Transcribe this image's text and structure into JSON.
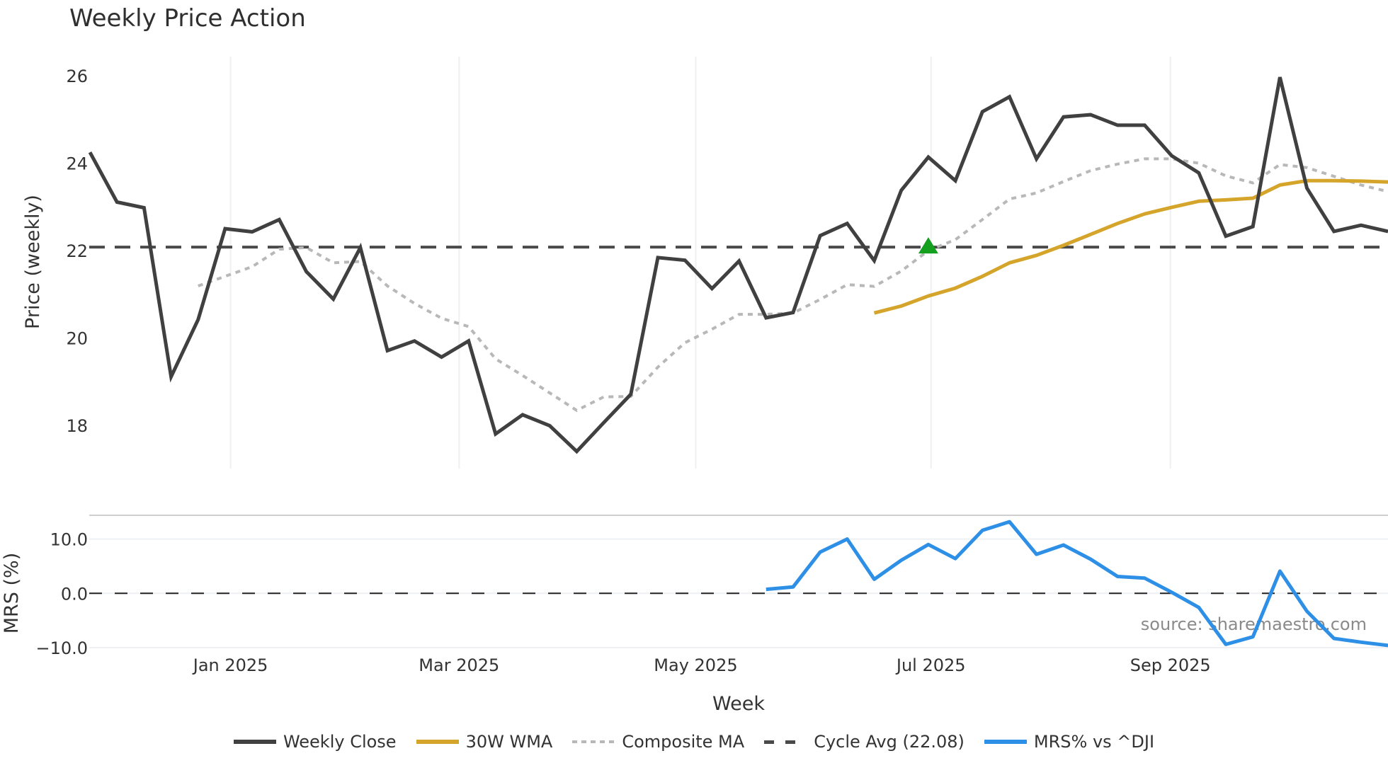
{
  "title": "Weekly Price Action",
  "source_note": "source: sharemaestro.com",
  "colors": {
    "weekly_close": "#404040",
    "wma": "#D4A52A",
    "composite": "#B8B8B8",
    "cycle_avg": "#4a4a4a",
    "mrs": "#2E8FE6",
    "signal_marker": "#14A01E",
    "grid": "#EEF0F3"
  },
  "legend": [
    {
      "key": "weekly_close",
      "label": "Weekly Close",
      "style": "solid"
    },
    {
      "key": "wma",
      "label": "30W WMA",
      "style": "solid"
    },
    {
      "key": "composite",
      "label": "Composite MA",
      "style": "dotted"
    },
    {
      "key": "cycle_avg",
      "label": "Cycle Avg (22.08)",
      "style": "dashed"
    },
    {
      "key": "mrs",
      "label": "MRS% vs ^DJI",
      "style": "solid"
    }
  ],
  "chart_data": [
    {
      "type": "line",
      "title": "Weekly Price Action",
      "xlabel": "Week",
      "ylabel": "Price (weekly)",
      "x_ticks": [
        "Jan 2025",
        "Mar 2025",
        "May 2025",
        "Jul 2025",
        "Sep 2025"
      ],
      "x_tick_index": [
        5.2,
        13.65,
        22.4,
        31.1,
        39.95
      ],
      "y_ticks": [
        18,
        20,
        22,
        24,
        26
      ],
      "ylim": [
        17.0,
        26.4
      ],
      "grid": true,
      "legend_position": "bottom",
      "n_points": 49,
      "series": [
        {
          "name": "Weekly Close",
          "start_index": 0,
          "values": [
            24.25,
            23.11,
            22.98,
            19.11,
            20.42,
            22.5,
            22.43,
            22.71,
            21.52,
            20.89,
            22.07,
            19.71,
            19.93,
            19.56,
            19.93,
            17.8,
            18.24,
            17.99,
            17.4,
            18.06,
            18.71,
            21.84,
            21.78,
            21.13,
            21.76,
            20.46,
            20.58,
            22.34,
            22.62,
            21.77,
            23.38,
            24.14,
            23.6,
            25.18,
            25.52,
            24.1,
            25.06,
            25.11,
            24.87,
            24.87,
            24.17,
            23.78,
            22.33,
            22.55,
            25.97,
            23.43,
            22.44,
            22.58,
            22.44
          ]
        },
        {
          "name": "30W WMA",
          "start_index": 29,
          "values": [
            20.57,
            20.73,
            20.96,
            21.14,
            21.41,
            21.72,
            21.89,
            22.12,
            22.37,
            22.62,
            22.84,
            22.99,
            23.13,
            23.16,
            23.2,
            23.5,
            23.6,
            23.6,
            23.59,
            23.57
          ]
        },
        {
          "name": "Composite MA",
          "start_index": 4,
          "values": [
            21.19,
            21.41,
            21.63,
            22.03,
            22.07,
            21.72,
            21.75,
            21.19,
            20.79,
            20.45,
            20.26,
            19.52,
            19.14,
            18.74,
            18.34,
            18.65,
            18.66,
            19.33,
            19.89,
            20.2,
            20.54,
            20.54,
            20.57,
            20.88,
            21.22,
            21.18,
            21.53,
            22.0,
            22.25,
            22.71,
            23.18,
            23.32,
            23.58,
            23.83,
            23.98,
            24.1,
            24.1,
            24.0,
            23.71,
            23.55,
            23.97,
            23.9,
            23.7,
            23.5,
            23.35
          ]
        },
        {
          "name": "Cycle Avg (22.08)",
          "constant": 22.08
        }
      ],
      "annotations": [
        {
          "type": "marker",
          "shape": "triangle-up",
          "index": 31,
          "value": 22.08,
          "color": "#14A01E"
        }
      ]
    },
    {
      "type": "line",
      "title": "",
      "xlabel": "Week",
      "ylabel": "MRS (%)",
      "y_ticks": [
        "10.0",
        "0.0",
        "−10.0"
      ],
      "y_tick_values": [
        10,
        0,
        -10
      ],
      "ylim": [
        -11.5,
        14.5
      ],
      "reference_line": 0,
      "series": [
        {
          "name": "MRS% vs ^DJI",
          "start_index": 25,
          "values": [
            0.74,
            1.17,
            7.6,
            10.0,
            2.6,
            6.1,
            9.0,
            6.4,
            11.6,
            13.2,
            7.2,
            8.9,
            6.3,
            3.1,
            2.8,
            0.2,
            -2.6,
            -9.4,
            -8.0,
            4.1,
            -3.3,
            -8.3,
            -9.0,
            -9.6
          ]
        }
      ],
      "annotations": [
        {
          "type": "text",
          "text": "source: sharemaestro.com"
        }
      ]
    }
  ]
}
